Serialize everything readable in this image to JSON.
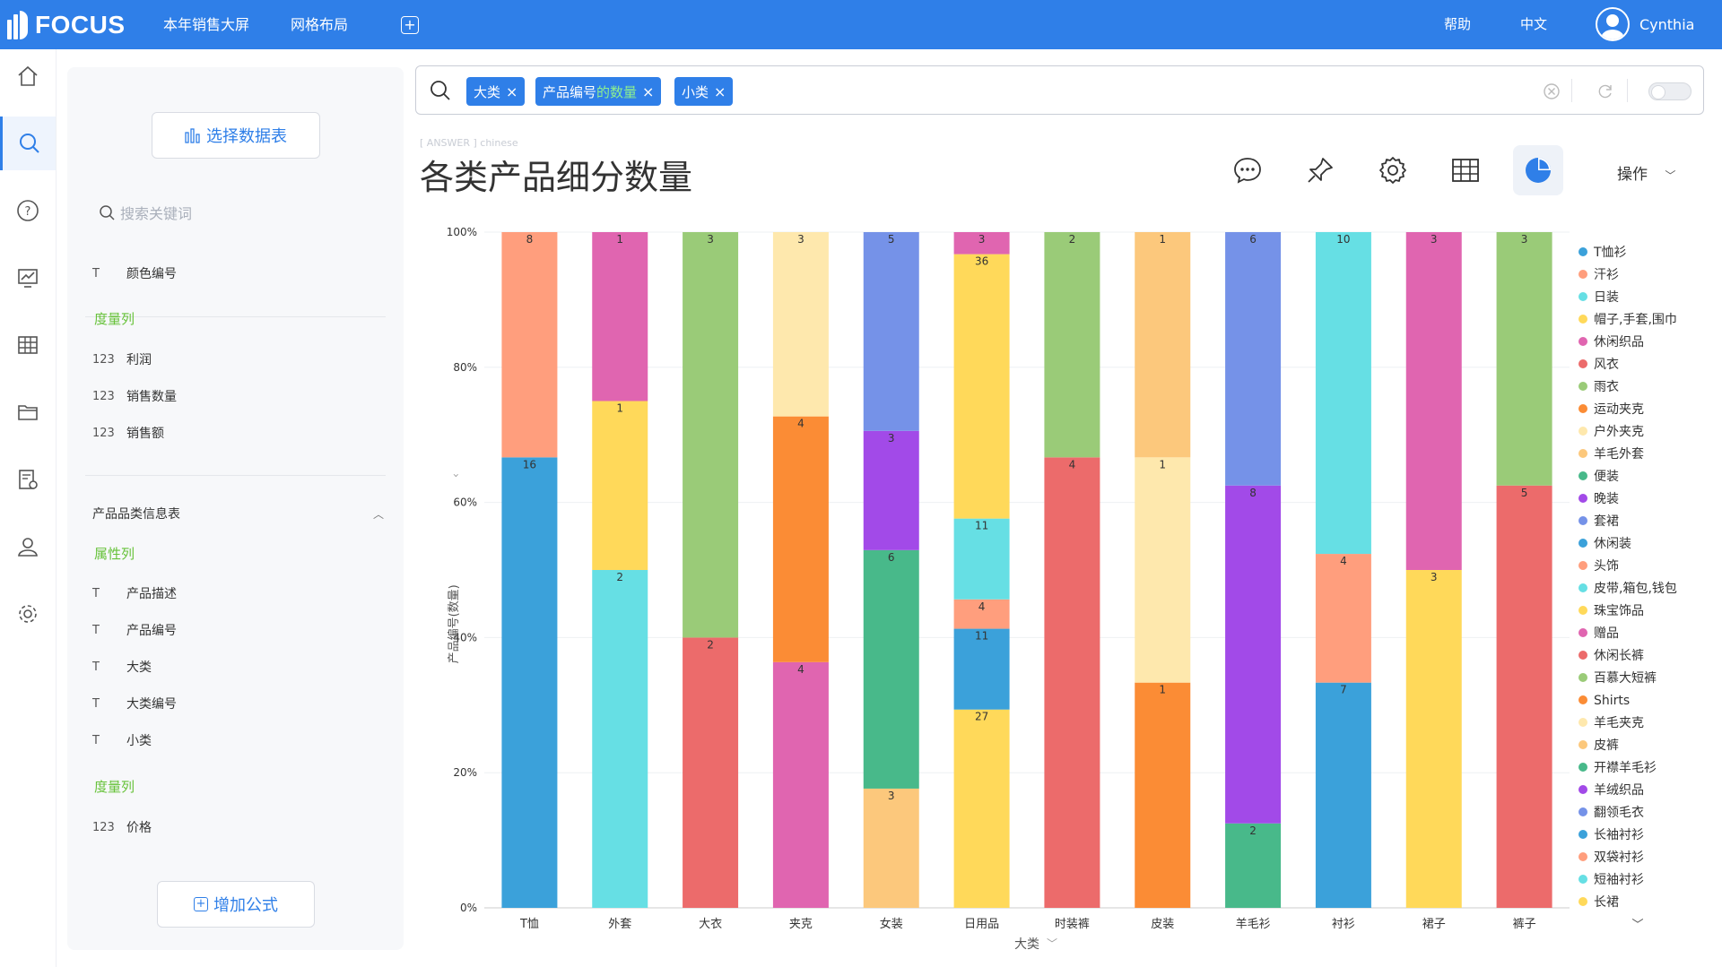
{
  "app": {
    "logo_text": "FOCUS",
    "nav": [
      "本年销售大屏",
      "网格布局"
    ],
    "help": "帮助",
    "lang": "中文",
    "user": "Cynthia",
    "brand_color": "#2f7fe8"
  },
  "rail_icons": [
    "home-icon",
    "search-icon",
    "help-icon",
    "dashboard-icon",
    "table-icon",
    "folder-icon",
    "report-settings-icon",
    "user-icon",
    "gear-icon"
  ],
  "panel": {
    "select_table": "选择数据表",
    "search_placeholder": "搜索关键词",
    "top_field": {
      "type": "T",
      "name": "颜色编号"
    },
    "measures_label": "度量列",
    "measures": [
      {
        "type": "123",
        "name": "利润"
      },
      {
        "type": "123",
        "name": "销售数量"
      },
      {
        "type": "123",
        "name": "销售额"
      }
    ],
    "table_name": "产品品类信息表",
    "attributes_label": "属性列",
    "attributes": [
      {
        "type": "T",
        "name": "产品描述"
      },
      {
        "type": "T",
        "name": "产品编号"
      },
      {
        "type": "T",
        "name": "大类"
      },
      {
        "type": "T",
        "name": "大类编号"
      },
      {
        "type": "T",
        "name": "小类"
      }
    ],
    "measures2_label": "度量列",
    "measures2": [
      {
        "type": "123",
        "name": "价格"
      }
    ],
    "add_formula": "增加公式"
  },
  "search": {
    "chip1": "大类",
    "chip2_a": "产品编号",
    "chip2_b": "的数量",
    "chip3": "小类"
  },
  "answer": {
    "tag": "[ ANSWER ] chinese",
    "title": "各类产品细分数量",
    "ops": "操作"
  },
  "chart_data": {
    "type": "bar",
    "stacked_percent": true,
    "xlabel": "大类",
    "ylabel": "产品编号(数量)",
    "y_ticks": [
      "0%",
      "20%",
      "40%",
      "60%",
      "80%",
      "100%"
    ],
    "categories": [
      "T恤",
      "外套",
      "大衣",
      "夹克",
      "女装",
      "日用品",
      "时装裤",
      "皮装",
      "羊毛衫",
      "衬衫",
      "裙子",
      "裤子"
    ],
    "series": [
      {
        "name": "T恤衫",
        "color": "#3ba1da"
      },
      {
        "name": "汗衫",
        "color": "#ff9e7d"
      },
      {
        "name": "日装",
        "color": "#66dfe4"
      },
      {
        "name": "帽子,手套,围巾",
        "color": "#ffd95a"
      },
      {
        "name": "休闲织品",
        "color": "#e065b0"
      },
      {
        "name": "风衣",
        "color": "#ec6b6b"
      },
      {
        "name": "雨衣",
        "color": "#9acb78"
      },
      {
        "name": "运动夹克",
        "color": "#fb8c35"
      },
      {
        "name": "户外夹克",
        "color": "#fee8ad"
      },
      {
        "name": "羊毛外套",
        "color": "#fcc87c"
      },
      {
        "name": "便装",
        "color": "#48b98a"
      },
      {
        "name": "晚装",
        "color": "#a24ae8"
      },
      {
        "name": "套裙",
        "color": "#7592e8"
      },
      {
        "name": "休闲装",
        "color": "#3ba1da"
      },
      {
        "name": "头饰",
        "color": "#ff9e7d"
      },
      {
        "name": "皮带,箱包,钱包",
        "color": "#66dfe4"
      },
      {
        "name": "珠宝饰品",
        "color": "#ffd95a"
      },
      {
        "name": "赠品",
        "color": "#e065b0"
      },
      {
        "name": "休闲长裤",
        "color": "#ec6b6b"
      },
      {
        "name": "百慕大短裤",
        "color": "#9acb78"
      },
      {
        "name": "Shirts",
        "color": "#fb8c35"
      },
      {
        "name": "羊毛夹克",
        "color": "#fee8ad"
      },
      {
        "name": "皮裤",
        "color": "#fcc87c"
      },
      {
        "name": "开襟羊毛衫",
        "color": "#48b98a"
      },
      {
        "name": "羊绒织品",
        "color": "#a24ae8"
      },
      {
        "name": "翻领毛衣",
        "color": "#7592e8"
      },
      {
        "name": "长袖衬衫",
        "color": "#3ba1da"
      },
      {
        "name": "双袋衬衫",
        "color": "#ff9e7d"
      },
      {
        "name": "短袖衬衫",
        "color": "#66dfe4"
      },
      {
        "name": "长裙",
        "color": "#ffd95a"
      }
    ],
    "stacks": [
      [
        {
          "value": 16,
          "color": "#3ba1da"
        },
        {
          "value": 8,
          "color": "#ff9e7d"
        }
      ],
      [
        {
          "value": 2,
          "color": "#66dfe4"
        },
        {
          "value": 1,
          "color": "#ffd95a"
        },
        {
          "value": 1,
          "color": "#e065b0"
        }
      ],
      [
        {
          "value": 2,
          "color": "#ec6b6b"
        },
        {
          "value": 3,
          "color": "#9acb78"
        }
      ],
      [
        {
          "value": 4,
          "color": "#e065b0"
        },
        {
          "value": 4,
          "color": "#fb8c35"
        },
        {
          "value": 3,
          "color": "#fee8ad"
        }
      ],
      [
        {
          "value": 3,
          "color": "#fcc87c"
        },
        {
          "value": 6,
          "color": "#48b98a"
        },
        {
          "value": 3,
          "color": "#a24ae8"
        },
        {
          "value": 5,
          "color": "#7592e8"
        }
      ],
      [
        {
          "value": 27,
          "color": "#ffd95a"
        },
        {
          "value": 11,
          "color": "#3ba1da"
        },
        {
          "value": 4,
          "color": "#ff9e7d"
        },
        {
          "value": 11,
          "color": "#66dfe4"
        },
        {
          "value": 36,
          "color": "#ffd95a"
        },
        {
          "value": 3,
          "color": "#e065b0"
        }
      ],
      [
        {
          "value": 4,
          "color": "#ec6b6b"
        },
        {
          "value": 2,
          "color": "#9acb78"
        }
      ],
      [
        {
          "value": 1,
          "color": "#fb8c35"
        },
        {
          "value": 1,
          "color": "#fee8ad"
        },
        {
          "value": 1,
          "color": "#fcc87c"
        }
      ],
      [
        {
          "value": 2,
          "color": "#48b98a"
        },
        {
          "value": 8,
          "color": "#a24ae8"
        },
        {
          "value": 6,
          "color": "#7592e8"
        }
      ],
      [
        {
          "value": 7,
          "color": "#3ba1da"
        },
        {
          "value": 4,
          "color": "#ff9e7d"
        },
        {
          "value": 10,
          "color": "#66dfe4"
        }
      ],
      [
        {
          "value": 3,
          "color": "#ffd95a"
        },
        {
          "value": 3,
          "color": "#e065b0"
        }
      ],
      [
        {
          "value": 5,
          "color": "#ec6b6b"
        },
        {
          "value": 3,
          "color": "#9acb78"
        }
      ]
    ]
  }
}
